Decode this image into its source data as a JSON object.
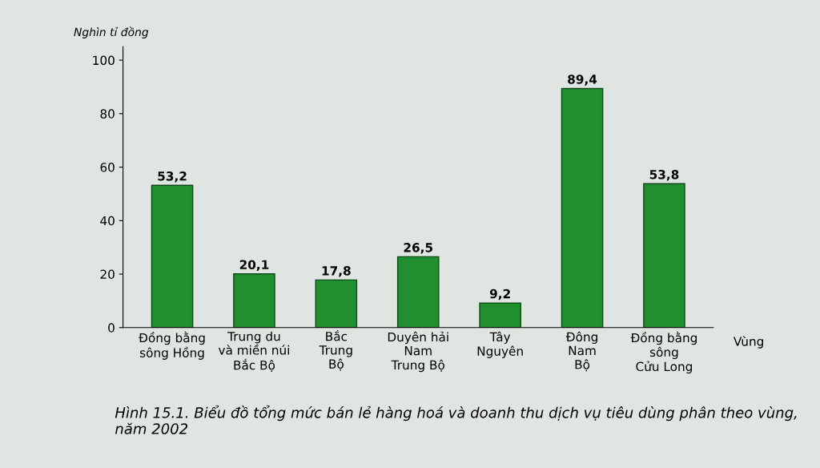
{
  "chart_data": {
    "type": "bar",
    "categories": [
      "Đồng bằng\nsông Hồng",
      "Trung du\nvà miền núi\nBắc Bộ",
      "Bắc\nTrung\nBộ",
      "Duyên hải\nNam\nTrung Bộ",
      "Tây\nNguyên",
      "Đông\nNam\nBộ",
      "Đồng bằng\nsông\nCửu Long"
    ],
    "values": [
      53.2,
      20.1,
      17.8,
      26.5,
      9.2,
      89.4,
      53.8
    ],
    "value_labels": [
      "53,2",
      "20,1",
      "17,8",
      "26,5",
      "9,2",
      "89,4",
      "53,8"
    ],
    "color": "#1f8f2f",
    "ylim": [
      0,
      105
    ],
    "yticks": [
      0,
      20,
      40,
      60,
      80,
      100
    ],
    "xlabel": "Vùng",
    "ylabel": "Nghìn tỉ đồng",
    "annotations": [
      "Hình 15.1. Biểu đồ tổng mức bán lẻ hàng hoá và doanh thu dịch vụ tiêu dùng phân theo vùng, năm 2002"
    ],
    "grid": false,
    "legend": false
  }
}
